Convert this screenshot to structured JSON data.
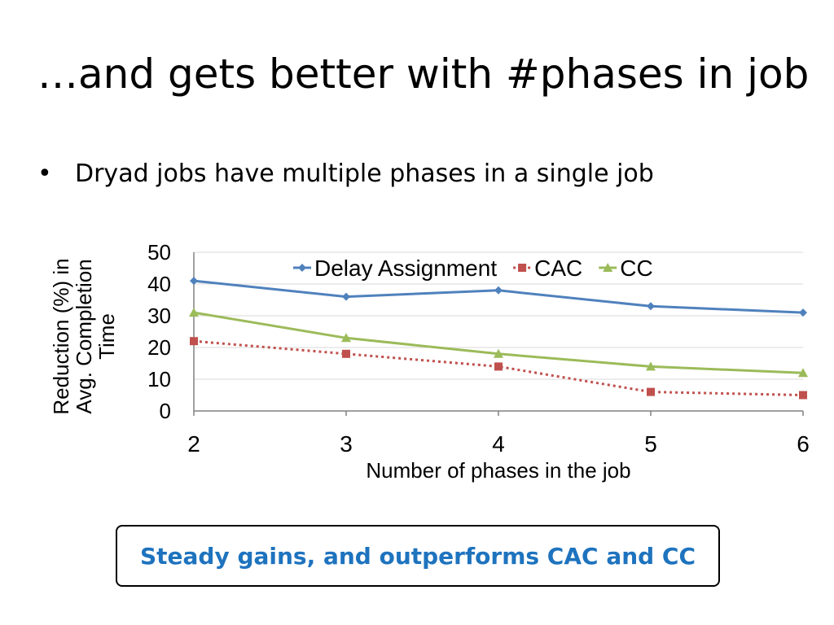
{
  "slide": {
    "title": "…and gets better with #phases in job",
    "bullet_marker": "•",
    "bullet": "Dryad jobs have multiple phases in a single job",
    "callout": "Steady gains, and outperforms CAC and CC"
  },
  "chart_data": {
    "type": "line",
    "x": [
      2,
      3,
      4,
      5,
      6
    ],
    "xlabel": "Number of phases in the job",
    "ylabel_lines": [
      "Reduction (%) in",
      "Avg. Completion",
      "Time"
    ],
    "ylim": [
      0,
      50
    ],
    "yticks": [
      0,
      10,
      20,
      30,
      40,
      50
    ],
    "grid": "horizontal",
    "legend_position": "top",
    "series": [
      {
        "name": "Delay Assignment",
        "values": [
          41,
          36,
          38,
          33,
          31
        ],
        "color": "#4f81bd",
        "marker": "diamond",
        "line": "solid"
      },
      {
        "name": "CAC",
        "values": [
          22,
          18,
          14,
          6,
          5
        ],
        "color": "#c0504d",
        "marker": "square",
        "line": "dotted"
      },
      {
        "name": "CC",
        "values": [
          31,
          23,
          18,
          14,
          12
        ],
        "color": "#9bbb59",
        "marker": "triangle",
        "line": "solid"
      }
    ]
  }
}
